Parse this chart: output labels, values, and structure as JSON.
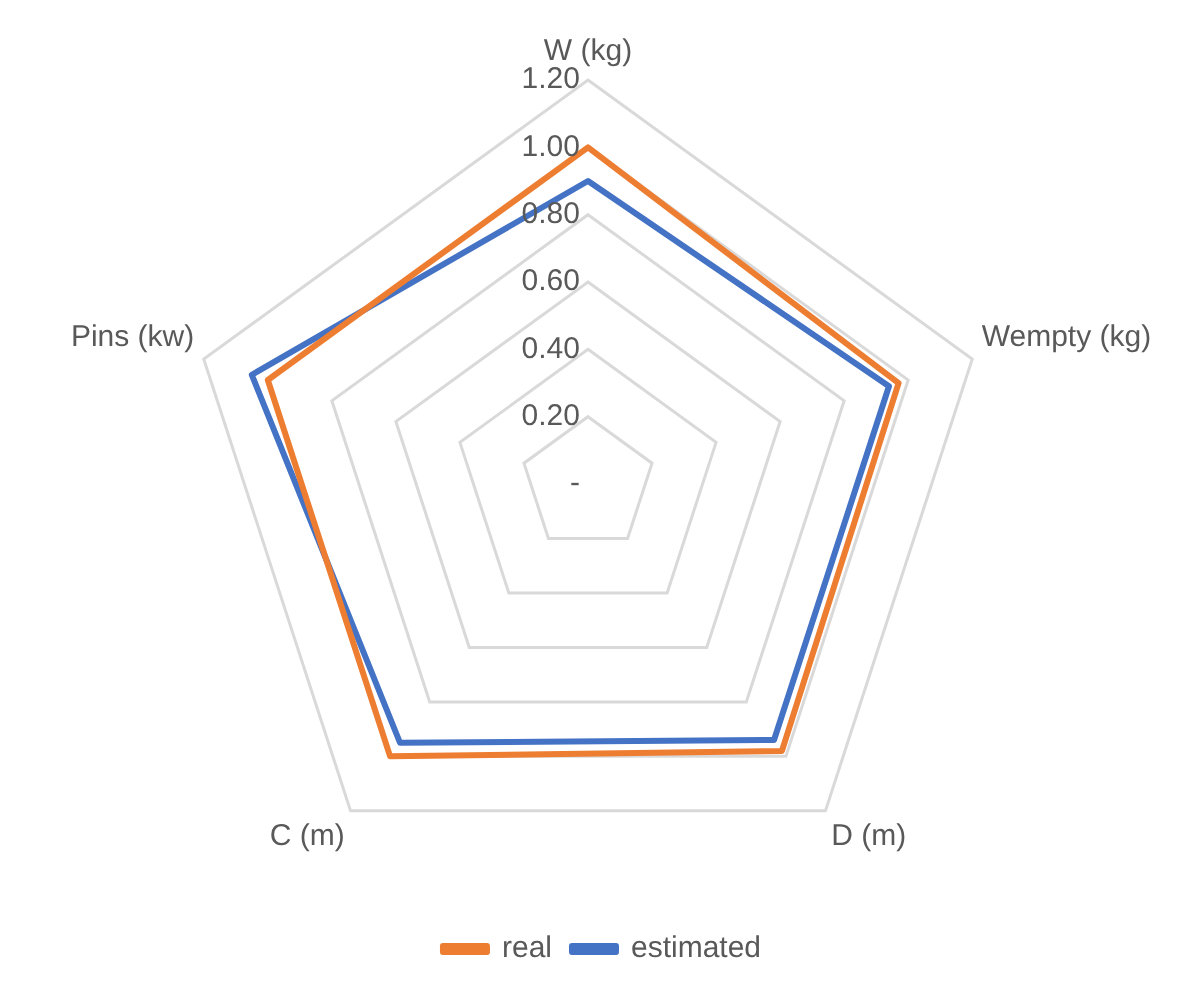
{
  "chart_data": {
    "type": "radar",
    "categories": [
      "W (kg)",
      "Wempty (kg)",
      "D (m)",
      "C (m)",
      "Pins (kw)"
    ],
    "series": [
      {
        "name": "real",
        "color": "#ed7d31",
        "values": [
          1.0,
          0.97,
          0.98,
          1.0,
          1.0
        ]
      },
      {
        "name": "estimated",
        "color": "#4472c4",
        "values": [
          0.9,
          0.94,
          0.94,
          0.95,
          1.05
        ]
      }
    ],
    "ylim": [
      0,
      1.2
    ],
    "yticks": [
      {
        "value": 0,
        "label": "-"
      },
      {
        "value": 0.2,
        "label": "0.20"
      },
      {
        "value": 0.4,
        "label": "0.40"
      },
      {
        "value": 0.6,
        "label": "0.60"
      },
      {
        "value": 0.8,
        "label": "0.80"
      },
      {
        "value": 1.0,
        "label": "1.00"
      },
      {
        "value": 1.2,
        "label": "1.20"
      }
    ],
    "grid": true,
    "legend": "bottom",
    "marker": "none",
    "line_style": "solid"
  }
}
